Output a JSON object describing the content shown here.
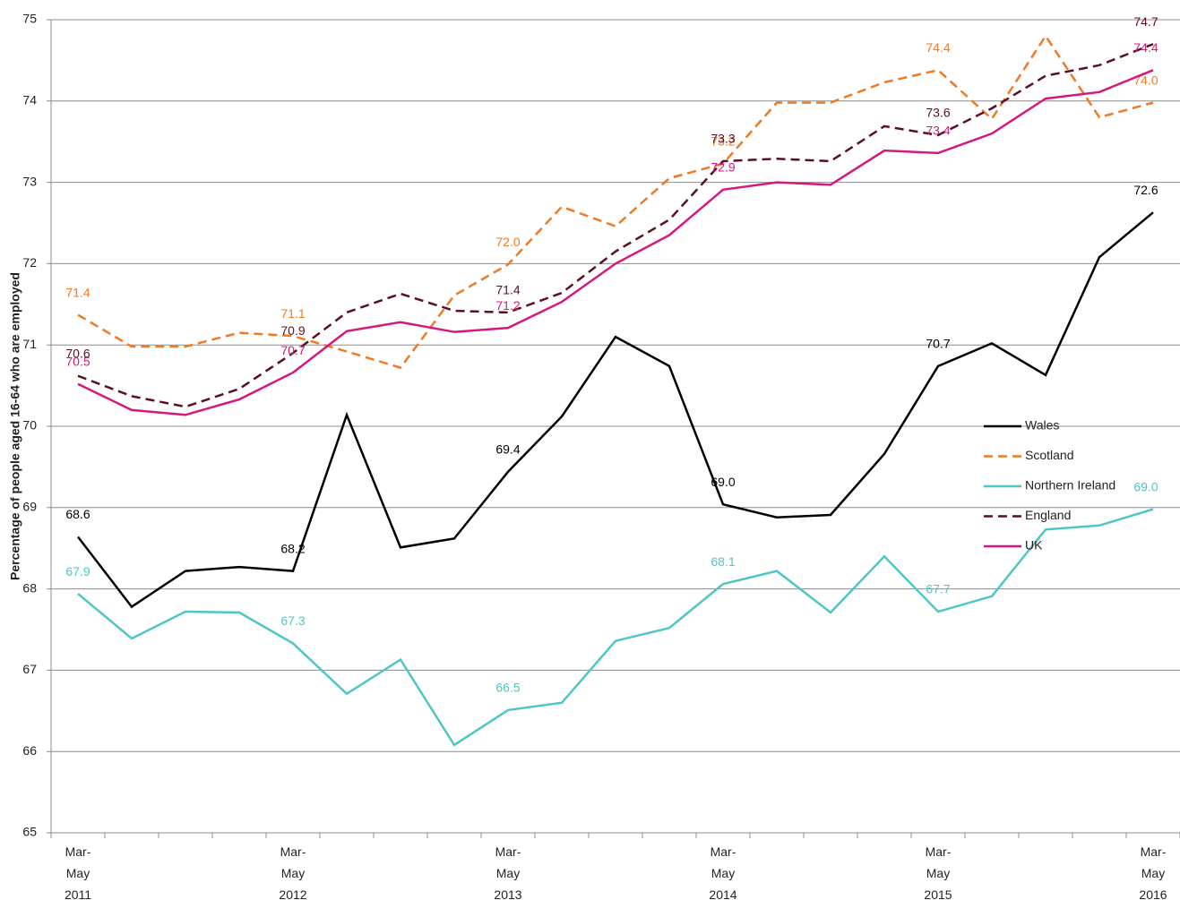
{
  "chart_data": {
    "type": "line",
    "y_label": "Percentage of people aged 16-64 who are employed",
    "categories": [
      "Mar-\nMay\n2011",
      null,
      null,
      null,
      "Mar-\nMay\n2012",
      null,
      null,
      null,
      "Mar-\nMay\n2013",
      null,
      null,
      null,
      "Mar-\nMay\n2014",
      null,
      null,
      null,
      "Mar-\nMay\n2015",
      null,
      null,
      null,
      "Mar-\nMay\n2016"
    ],
    "series": [
      {
        "name": "Wales",
        "color": "#000000",
        "line_style": "solid",
        "values": [
          68.64,
          67.78,
          68.22,
          68.27,
          68.22,
          70.14,
          68.51,
          68.62,
          69.44,
          70.12,
          71.1,
          70.74,
          69.04,
          68.88,
          68.91,
          69.66,
          70.74,
          71.02,
          70.63,
          72.08,
          72.63
        ],
        "value_labels": [
          "68.6",
          null,
          null,
          null,
          "68.2",
          null,
          null,
          null,
          "69.4",
          null,
          null,
          null,
          "69.0",
          null,
          null,
          null,
          "70.7",
          null,
          null,
          null,
          "72.6"
        ]
      },
      {
        "name": "Scotland",
        "color": "#f07a23",
        "line_style": "dashed",
        "values": [
          71.37,
          70.98,
          70.98,
          71.15,
          71.11,
          70.92,
          70.72,
          71.61,
          71.99,
          72.7,
          72.46,
          73.05,
          73.23,
          73.98,
          73.98,
          74.23,
          74.38,
          73.78,
          74.8,
          73.8,
          73.98
        ],
        "value_labels": [
          "71.4",
          null,
          null,
          null,
          "71.1",
          null,
          null,
          null,
          "72.0",
          null,
          null,
          null,
          "73.2",
          null,
          null,
          null,
          "74.4",
          null,
          null,
          null,
          "74.0"
        ]
      },
      {
        "name": "Northern Ireland",
        "color": "#4fc6c6",
        "line_style": "solid",
        "values": [
          67.94,
          67.39,
          67.72,
          67.71,
          67.33,
          66.71,
          67.13,
          66.08,
          66.51,
          66.6,
          67.36,
          67.52,
          68.06,
          68.22,
          67.71,
          68.4,
          67.72,
          67.91,
          68.73,
          68.78,
          68.98
        ],
        "value_labels": [
          "67.9",
          null,
          null,
          null,
          "67.3",
          null,
          null,
          null,
          "66.5",
          null,
          null,
          null,
          "68.1",
          null,
          null,
          null,
          "67.7",
          null,
          null,
          null,
          "69.0"
        ]
      },
      {
        "name": "England",
        "color": "#5a0f24",
        "line_style": "dashed",
        "values": [
          70.62,
          70.37,
          70.24,
          70.46,
          70.9,
          71.4,
          71.63,
          71.42,
          71.4,
          71.64,
          72.15,
          72.54,
          73.26,
          73.29,
          73.26,
          73.69,
          73.58,
          73.91,
          74.31,
          74.44,
          74.7
        ],
        "value_labels": [
          "70.6",
          null,
          null,
          null,
          "70.9",
          null,
          null,
          null,
          "71.4",
          null,
          null,
          null,
          "73.3",
          null,
          null,
          null,
          "73.6",
          null,
          null,
          null,
          "74.7"
        ]
      },
      {
        "name": "UK",
        "color": "#d6187d",
        "line_style": "solid",
        "values": [
          70.52,
          70.2,
          70.14,
          70.33,
          70.66,
          71.17,
          71.28,
          71.16,
          71.21,
          71.53,
          72.0,
          72.35,
          72.91,
          73.0,
          72.97,
          73.39,
          73.36,
          73.6,
          74.03,
          74.11,
          74.38
        ],
        "value_labels": [
          "70.5",
          null,
          null,
          null,
          "70.7",
          null,
          null,
          null,
          "71.2",
          null,
          null,
          null,
          "72.9",
          null,
          null,
          null,
          "73.4",
          null,
          null,
          null,
          "74.4"
        ]
      }
    ],
    "ylim": [
      65,
      75
    ],
    "yticks": [
      65,
      66,
      67,
      68,
      69,
      70,
      71,
      72,
      73,
      74,
      75
    ],
    "grid": true,
    "legend": "right"
  }
}
